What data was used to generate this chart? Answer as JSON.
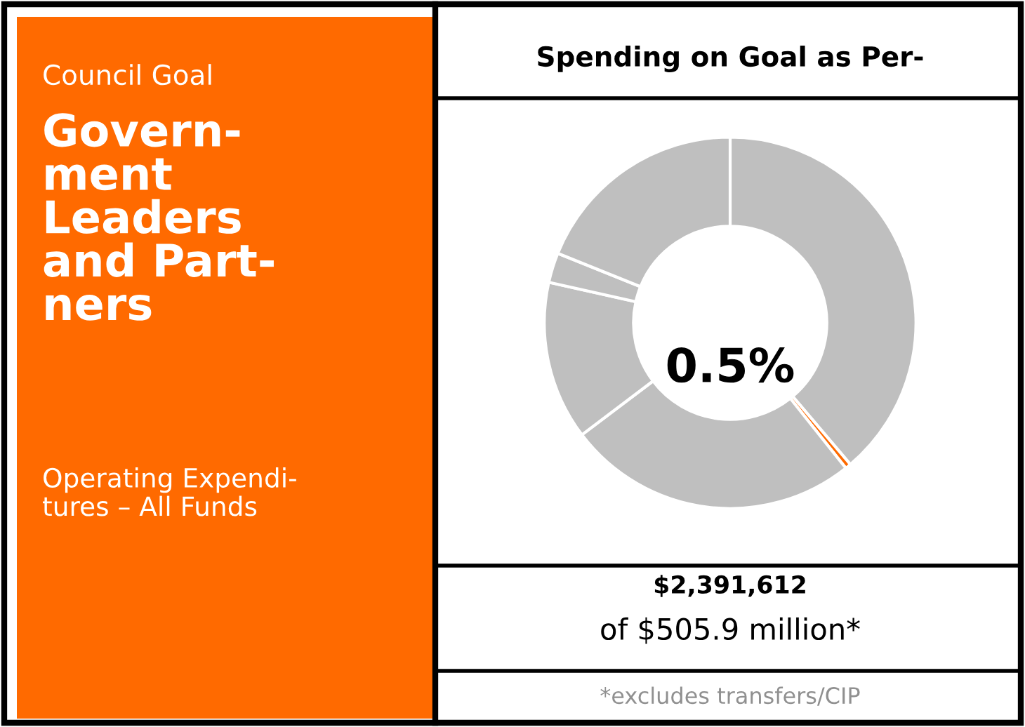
{
  "chart_data": {
    "type": "donut",
    "title": "Spending on Goal as Per-",
    "categories": [
      null,
      null,
      null,
      null,
      null,
      null
    ],
    "values": [
      38.8,
      0.5,
      25.4,
      13.8,
      2.6,
      18.9
    ],
    "colors": [
      "#bfbfbf",
      "#ff6a00",
      "#bfbfbf",
      "#bfbfbf",
      "#bfbfbf",
      "#bfbfbf"
    ],
    "annotations": [
      "0.5%",
      "Council Goal",
      "Govern-\nment\nLeaders\nand Part-\nners",
      "Operating Expendi-\ntures – All Funds",
      "$2,391,612",
      "of $505.9 million*",
      "*excludes transfers/CIP"
    ]
  }
}
